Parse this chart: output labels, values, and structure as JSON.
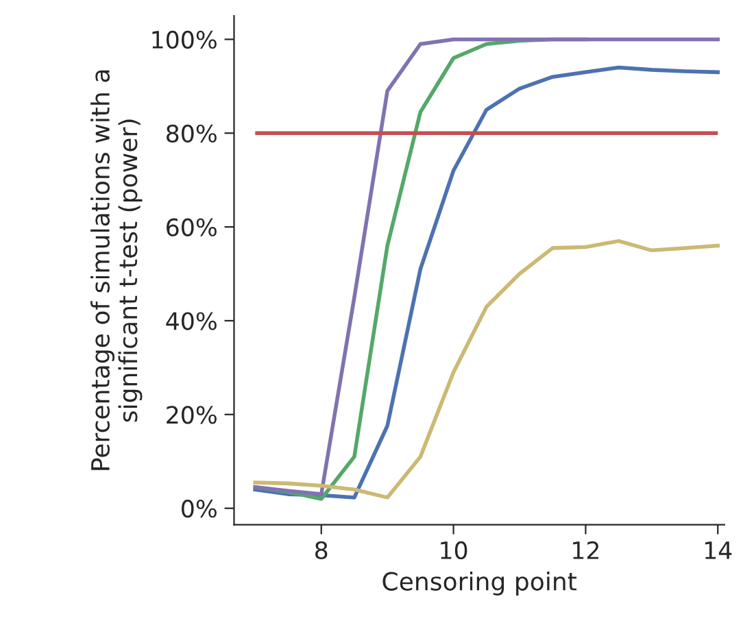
{
  "chart_data": {
    "type": "line",
    "xlabel": "Censoring point",
    "ylabel": "Percentage of simulations with a\nsignificant t-test (power)",
    "x": [
      7,
      7.5,
      8,
      8.5,
      9,
      9.5,
      10,
      10.5,
      11,
      11.5,
      12,
      12.5,
      13,
      13.5,
      14
    ],
    "series": [
      {
        "color": "#4c72b0",
        "values": [
          4,
          3,
          2.8,
          2.3,
          17.6,
          51,
          72,
          85,
          89.5,
          92,
          93,
          94,
          93.5,
          93.2,
          93
        ]
      },
      {
        "color": "#55a868",
        "values": [
          4.5,
          3.5,
          2,
          11,
          56,
          84.5,
          96,
          99,
          99.7,
          100,
          100,
          null,
          null,
          null,
          null
        ]
      },
      {
        "color": "#8172b2",
        "values": [
          4.5,
          3.7,
          3,
          45,
          89,
          99,
          100,
          100,
          100,
          100,
          100,
          100,
          100,
          100,
          100
        ]
      },
      {
        "color": "#ccb974",
        "values": [
          5.5,
          5.3,
          4.8,
          4,
          2.3,
          11,
          29,
          43,
          50,
          55.5,
          55.7,
          57,
          55,
          55.5,
          56
        ]
      }
    ],
    "ref_lines": [
      {
        "axis": "y",
        "value": 80,
        "color": "#c44e52"
      }
    ],
    "xlim": [
      6.68,
      14.1
    ],
    "ylim": [
      -3.5,
      105
    ],
    "xticks": [
      8,
      10,
      12,
      14
    ],
    "yticks": [
      {
        "value": 0,
        "label": "0%"
      },
      {
        "value": 20,
        "label": "20%"
      },
      {
        "value": 40,
        "label": "40%"
      },
      {
        "value": 60,
        "label": "60%"
      },
      {
        "value": 80,
        "label": "80%"
      },
      {
        "value": 100,
        "label": "100%"
      }
    ],
    "grid": false,
    "legend": false
  }
}
